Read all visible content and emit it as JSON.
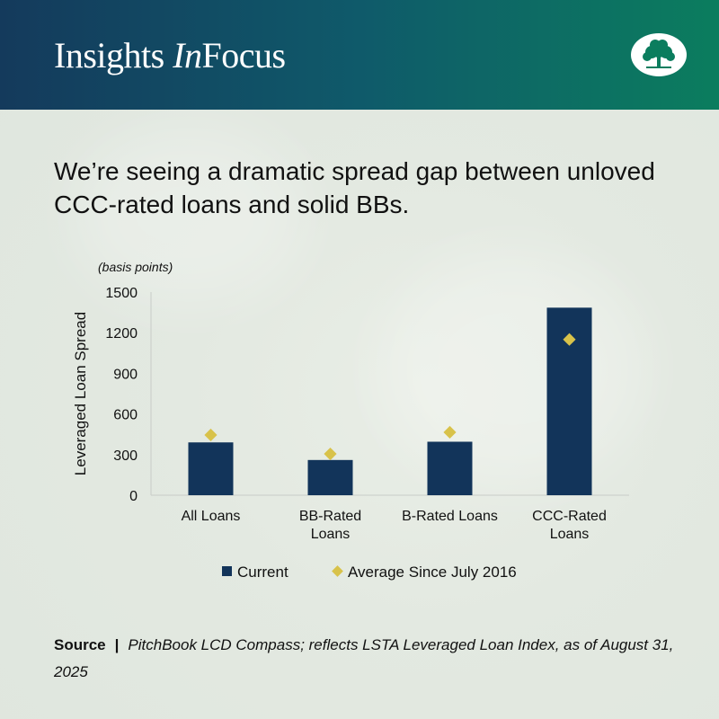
{
  "header": {
    "brand_prefix": "Insights ",
    "brand_italic": "In",
    "brand_suffix": "Focus"
  },
  "headline": "We’re seeing a dramatic spread gap between unloved CCC-rated loans and solid BBs.",
  "chart_data": {
    "type": "bar",
    "unit_note": "(basis points)",
    "ylabel": "Leveraged Loan Spread",
    "ylim": [
      0,
      1500
    ],
    "yticks": [
      "0",
      "300",
      "600",
      "900",
      "1200",
      "1500"
    ],
    "categories": [
      [
        "All Loans"
      ],
      [
        "BB-Rated",
        "Loans"
      ],
      [
        "B-Rated Loans"
      ],
      [
        "CCC-Rated",
        "Loans"
      ]
    ],
    "series": [
      {
        "name": "Current",
        "type": "bar",
        "color": "#12345a",
        "values": [
          390,
          260,
          395,
          1385
        ]
      },
      {
        "name": "Average Since July 2016",
        "type": "marker",
        "color": "#d8c24a",
        "values": [
          445,
          305,
          465,
          1150
        ]
      }
    ],
    "legend": "bottom"
  },
  "source": {
    "label": "Source",
    "separator": "|",
    "text": "PitchBook LCD Compass; reflects LSTA Leveraged Loan Index, as of August 31, 2025"
  }
}
